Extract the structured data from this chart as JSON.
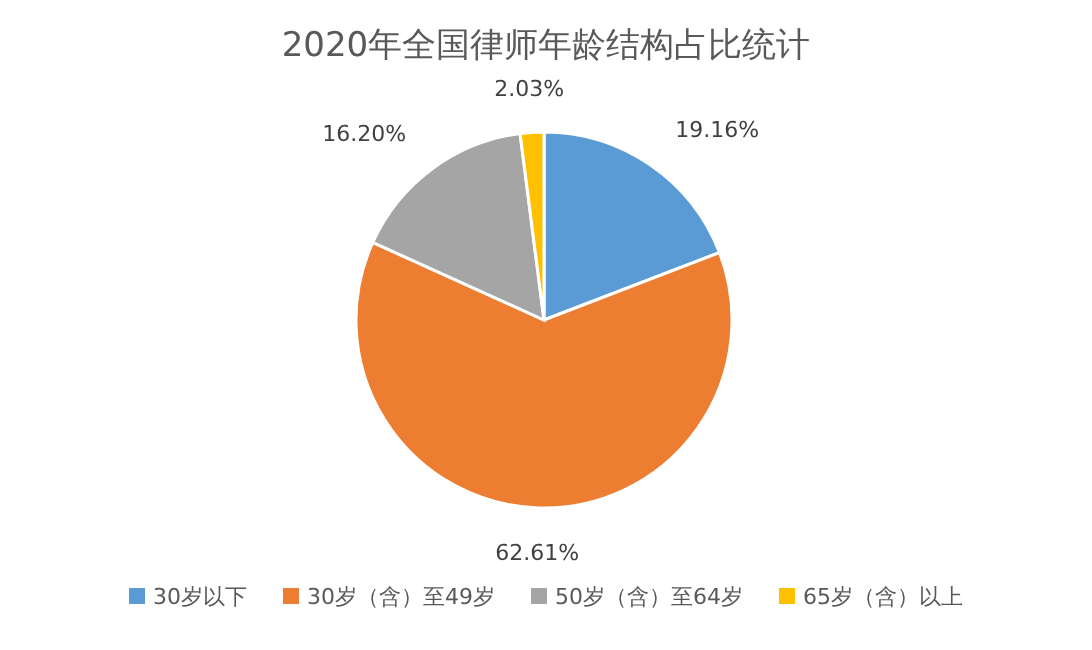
{
  "chart_data": {
    "type": "pie",
    "title": "2020年全国律师年龄结构占比统计",
    "categories": [
      "30岁以下",
      "30岁（含）至49岁",
      "50岁（含）至64岁",
      "65岁（含）以上"
    ],
    "values": [
      19.16,
      62.61,
      16.2,
      2.03
    ],
    "colors": [
      "#5b9bd5",
      "#ed7d31",
      "#a5a5a5",
      "#ffc000"
    ],
    "value_labels": [
      "19.16%",
      "62.61%",
      "16.20%",
      "2.03%"
    ],
    "legend": "bottom"
  }
}
